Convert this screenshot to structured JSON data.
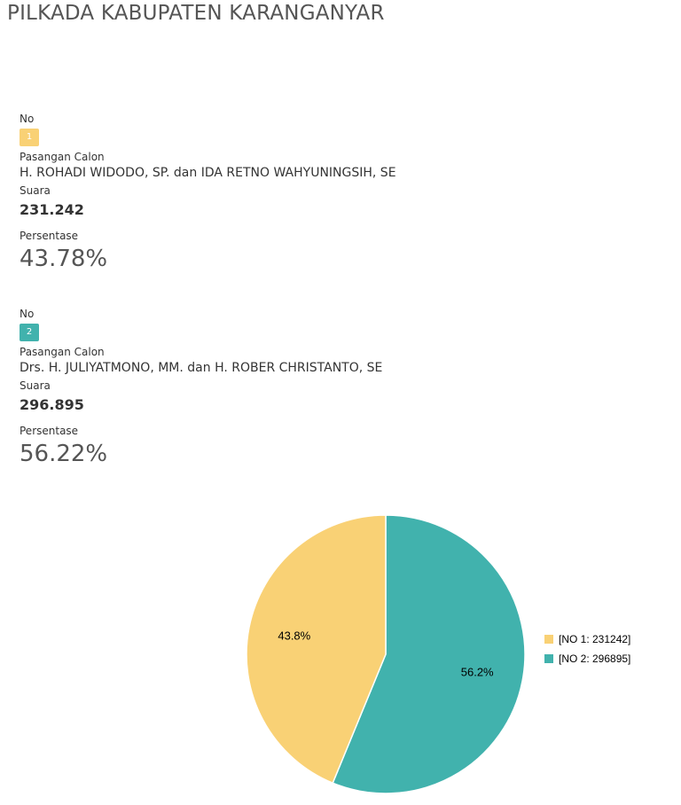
{
  "page": {
    "title": "PILKADA KABUPATEN KARANGANYAR"
  },
  "candidates": [
    {
      "no_label": "No",
      "no": "1",
      "pair_label": "Pasangan Calon",
      "pair": "H. ROHADI WIDODO, SP. dan IDA RETNO WAHYUNINGSIH, SE",
      "votes_label": "Suara",
      "votes": "231.242",
      "percent_label": "Persentase",
      "percent": "43.78%",
      "color": "#f9d175"
    },
    {
      "no_label": "No",
      "no": "2",
      "pair_label": "Pasangan Calon",
      "pair": "Drs. H. JULIYATMONO, MM. dan H. ROBER CHRISTANTO, SE",
      "votes_label": "Suara",
      "votes": "296.895",
      "percent_label": "Persentase",
      "percent": "56.22%",
      "color": "#41b2ad"
    }
  ],
  "chart_data": {
    "type": "pie",
    "title": "",
    "legend_position": "right",
    "slices": [
      {
        "label": "[NO 1: 231242]",
        "value": 231242,
        "percent_label": "43.8%",
        "color": "#f9d175"
      },
      {
        "label": "[NO 2: 296895]",
        "value": 296895,
        "percent_label": "56.2%",
        "color": "#41b2ad"
      }
    ]
  }
}
